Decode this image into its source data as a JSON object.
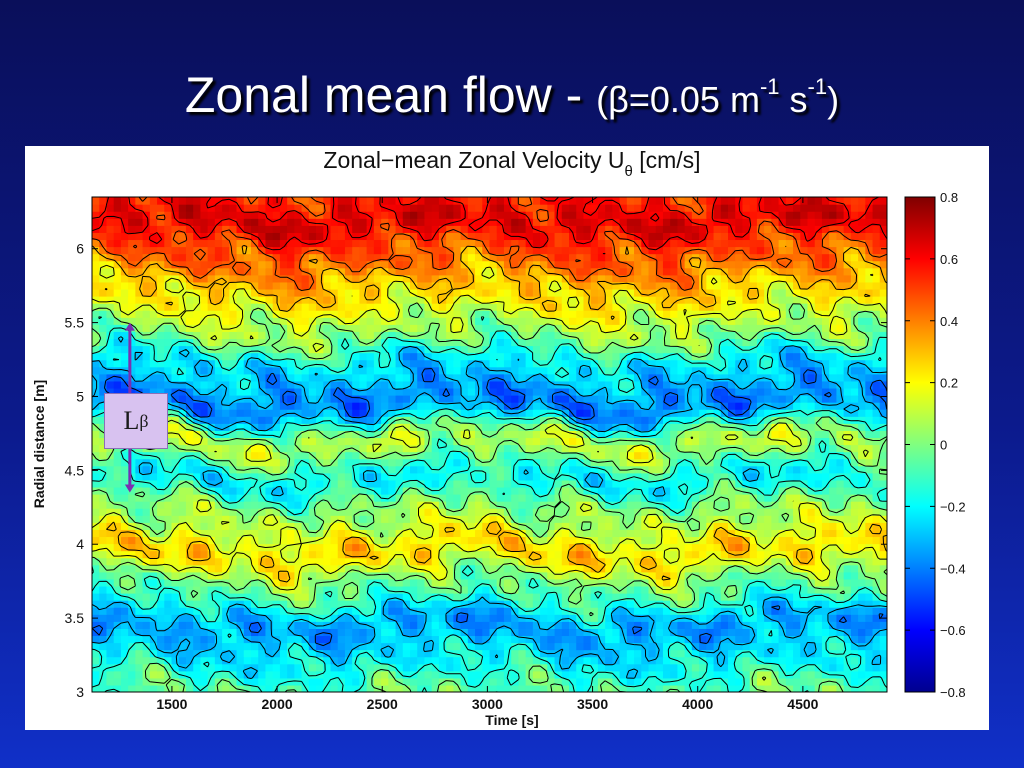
{
  "slide": {
    "title_main": "Zonal mean flow - ",
    "title_params_pre": "(β=0.05 m",
    "title_sup1": "-1",
    "title_params_mid": " s",
    "title_sup2": "-1",
    "title_params_post": ")"
  },
  "annotation": {
    "label": "L",
    "label_sub": "β",
    "arrow_range_m": [
      4.35,
      5.5
    ],
    "arrow_time_s": 1300,
    "color": "#7b2fb0"
  },
  "chart_data": {
    "type": "heatmap",
    "title": "Zonal−mean Zonal Velocity U",
    "title_sub": "θ",
    "title_unit": " [cm/s]",
    "xlabel": "Time [s]",
    "ylabel": "Radial distance [m]",
    "xlim": [
      1120,
      4900
    ],
    "ylim": [
      3,
      6.35
    ],
    "xticks": [
      1500,
      2000,
      2500,
      3000,
      3500,
      4000,
      4500
    ],
    "yticks": [
      3,
      3.5,
      4,
      4.5,
      5,
      5.5,
      6
    ],
    "ytick_labels": [
      "3",
      "3.5",
      "4",
      "4.5",
      "5",
      "5.5",
      "6"
    ],
    "colorbar": {
      "range": [
        -0.8,
        0.8
      ],
      "ticks": [
        0.8,
        0.6,
        0.4,
        0.2,
        0,
        -0.2,
        -0.4,
        -0.6,
        -0.8
      ],
      "tick_labels": [
        "0.8",
        "0.6",
        "0.4",
        "0.2",
        "0",
        "−0.2",
        "−0.4",
        "−0.6",
        "−0.8"
      ],
      "colormap": "jet"
    },
    "contour_levels": [
      -0.6,
      -0.45,
      -0.3,
      -0.15,
      0,
      0.15,
      0.3,
      0.45,
      0.6
    ],
    "velocity_bands": [
      {
        "r": 3.0,
        "u": -0.05
      },
      {
        "r": 3.2,
        "u": -0.2
      },
      {
        "r": 3.45,
        "u": -0.35
      },
      {
        "r": 3.7,
        "u": -0.05
      },
      {
        "r": 3.95,
        "u": 0.25
      },
      {
        "r": 4.2,
        "u": 0.05
      },
      {
        "r": 4.45,
        "u": -0.2
      },
      {
        "r": 4.7,
        "u": 0.1
      },
      {
        "r": 4.95,
        "u": -0.4
      },
      {
        "r": 5.2,
        "u": -0.25
      },
      {
        "r": 5.45,
        "u": 0.05
      },
      {
        "r": 5.7,
        "u": 0.25
      },
      {
        "r": 5.95,
        "u": 0.45
      },
      {
        "r": 6.2,
        "u": 0.65
      },
      {
        "r": 6.35,
        "u": 0.55
      }
    ]
  }
}
